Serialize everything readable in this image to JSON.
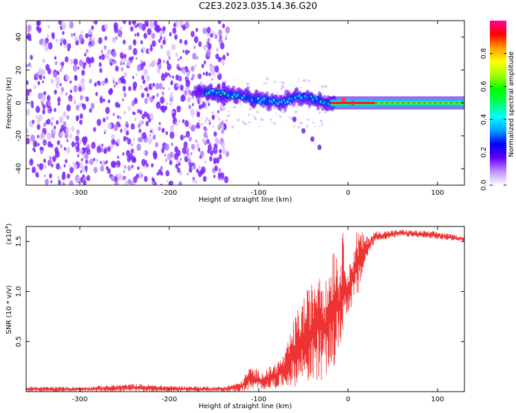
{
  "chart_data": [
    {
      "type": "heatmap",
      "title": "C2E3.2023.035.14.36.G20",
      "xlabel": "Height of straight line (km)",
      "ylabel": "Frequency (Hz)",
      "xlim": [
        -360,
        130
      ],
      "ylim": [
        -50,
        50
      ],
      "x_ticks": [
        -300,
        -200,
        -100,
        0,
        100
      ],
      "y_ticks": [
        -40,
        -20,
        0,
        20,
        40
      ],
      "grid": false,
      "noise_region_x": [
        -360,
        -140
      ],
      "signal": [
        {
          "x": -170,
          "f": 7
        },
        {
          "x": -150,
          "f": 6
        },
        {
          "x": -130,
          "f": 5
        },
        {
          "x": -110,
          "f": 3
        },
        {
          "x": -90,
          "f": 1
        },
        {
          "x": -75,
          "f": 0
        },
        {
          "x": -60,
          "f": 4
        },
        {
          "x": -45,
          "f": 3
        },
        {
          "x": -30,
          "f": 1
        },
        {
          "x": -20,
          "f": 0
        },
        {
          "x": 0,
          "f": 0
        },
        {
          "x": 130,
          "f": 0
        }
      ],
      "branch": [
        {
          "x": -60,
          "f": -10
        },
        {
          "x": -50,
          "f": -17
        },
        {
          "x": -40,
          "f": -22
        },
        {
          "x": -32,
          "f": -27
        }
      ],
      "colorbar": {
        "label": "Normalized spectral amplitude",
        "range": [
          0,
          1
        ],
        "ticks": [
          "0.0",
          "0.2",
          "0.4",
          "0.6",
          "0.8"
        ],
        "colors": [
          "#ffffff",
          "#c090ff",
          "#6000ff",
          "#0000ff",
          "#00a0ff",
          "#00ffff",
          "#00ff60",
          "#00ff00",
          "#a0ff00",
          "#ffff00",
          "#ffa000",
          "#ff0000",
          "#ff00a0"
        ]
      }
    },
    {
      "type": "line",
      "xlabel": "Height of straight line (km)",
      "ylabel": "SNR (10 * v/v)",
      "scale_label": "(x10",
      "scale_exp": "4",
      "scale_close": ")",
      "xlim": [
        -360,
        130
      ],
      "ylim": [
        0,
        1.65
      ],
      "x_ticks": [
        -300,
        -200,
        -100,
        0,
        100
      ],
      "y_ticks": [
        "0.5",
        "1.0",
        "1.5"
      ],
      "color": "#ee3333",
      "envelope": [
        {
          "x": -360,
          "lo": 0.0,
          "hi": 0.05
        },
        {
          "x": -300,
          "lo": 0.0,
          "hi": 0.05
        },
        {
          "x": -240,
          "lo": 0.0,
          "hi": 0.08
        },
        {
          "x": -200,
          "lo": 0.0,
          "hi": 0.06
        },
        {
          "x": -140,
          "lo": 0.0,
          "hi": 0.05
        },
        {
          "x": -120,
          "lo": 0.0,
          "hi": 0.1
        },
        {
          "x": -110,
          "lo": 0.01,
          "hi": 0.25
        },
        {
          "x": -95,
          "lo": 0.02,
          "hi": 0.2
        },
        {
          "x": -80,
          "lo": 0.03,
          "hi": 0.3
        },
        {
          "x": -70,
          "lo": 0.05,
          "hi": 0.4
        },
        {
          "x": -60,
          "lo": 0.05,
          "hi": 0.75
        },
        {
          "x": -50,
          "lo": 0.08,
          "hi": 0.95
        },
        {
          "x": -40,
          "lo": 0.08,
          "hi": 1.1
        },
        {
          "x": -32,
          "lo": 0.1,
          "hi": 1.4
        },
        {
          "x": -25,
          "lo": 0.15,
          "hi": 1.1
        },
        {
          "x": -15,
          "lo": 0.2,
          "hi": 1.6
        },
        {
          "x": -10,
          "lo": 0.4,
          "hi": 1.3
        },
        {
          "x": -5,
          "lo": 0.6,
          "hi": 1.65
        },
        {
          "x": 0,
          "lo": 0.8,
          "hi": 1.2
        },
        {
          "x": 10,
          "lo": 0.9,
          "hi": 1.65
        },
        {
          "x": 20,
          "lo": 1.3,
          "hi": 1.55
        },
        {
          "x": 30,
          "lo": 1.5,
          "hi": 1.6
        },
        {
          "x": 60,
          "lo": 1.55,
          "hi": 1.62
        },
        {
          "x": 100,
          "lo": 1.52,
          "hi": 1.6
        },
        {
          "x": 130,
          "lo": 1.5,
          "hi": 1.55
        }
      ]
    }
  ]
}
